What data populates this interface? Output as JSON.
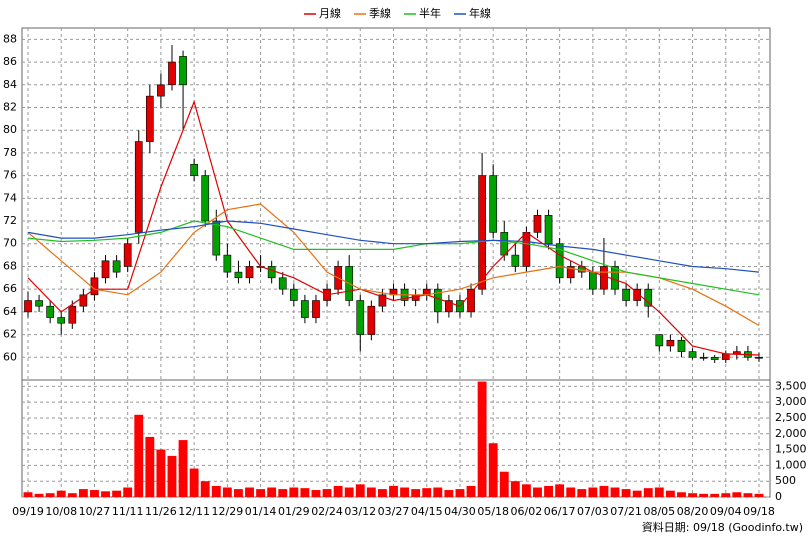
{
  "chart_data": [
    {
      "type": "candlestick",
      "categories": [
        "09/19",
        null,
        null,
        "10/08",
        null,
        null,
        "10/27",
        null,
        null,
        "11/11",
        null,
        null,
        "11/26",
        null,
        null,
        "12/11",
        null,
        null,
        "12/29",
        null,
        null,
        "01/14",
        null,
        null,
        "01/29",
        null,
        null,
        "02/24",
        null,
        null,
        "03/12",
        null,
        null,
        "03/27",
        null,
        null,
        "04/15",
        null,
        null,
        "04/30",
        null,
        null,
        "05/18",
        null,
        null,
        "06/02",
        null,
        null,
        "06/17",
        null,
        null,
        "07/03",
        null,
        null,
        "07/21",
        null,
        null,
        "08/05",
        null,
        null,
        "08/20",
        null,
        null,
        "09/04",
        null,
        null,
        "09/18"
      ],
      "open": [
        64,
        65,
        64.5,
        63.5,
        63,
        64.5,
        65.5,
        67,
        68.5,
        68,
        71,
        79,
        83,
        84,
        86.5,
        77,
        76,
        72,
        69,
        67.5,
        67,
        68,
        68,
        67,
        66,
        65,
        63.5,
        65,
        66,
        68,
        65,
        62,
        64.5,
        65.5,
        66,
        65,
        65.5,
        66,
        64,
        65,
        64,
        66,
        76,
        71,
        69,
        68,
        71,
        72.5,
        70,
        67,
        68,
        67.5,
        66,
        68,
        66,
        65,
        66,
        62,
        61,
        61.5,
        60.5,
        60,
        60,
        59.8,
        60.3,
        60.5,
        60
      ],
      "high": [
        65.8,
        65.5,
        65,
        64,
        65,
        66,
        67.5,
        69,
        69,
        70.5,
        80,
        84,
        85,
        87.5,
        87,
        77.5,
        76.5,
        73,
        70,
        68.5,
        68.5,
        69,
        68.5,
        67.5,
        66.5,
        65.5,
        65.5,
        66.5,
        68.5,
        69,
        65.5,
        65,
        66,
        66.5,
        66.5,
        66,
        66.5,
        66.5,
        65.5,
        65.5,
        66.5,
        78,
        77,
        72,
        70,
        71.5,
        73,
        73,
        70.5,
        68.5,
        68.5,
        68,
        70.5,
        68.5,
        66.5,
        66.5,
        66.5,
        62,
        62,
        61.8,
        60.8,
        60.4,
        60.2,
        60.6,
        61,
        61,
        60.4
      ],
      "low": [
        63.5,
        64,
        63,
        62,
        62.5,
        64,
        65,
        66.5,
        67,
        67.5,
        70,
        78,
        82,
        83.5,
        80,
        75.5,
        71.5,
        68.5,
        67,
        66.5,
        66.5,
        67.5,
        66.5,
        65.5,
        64.5,
        63,
        63,
        64.5,
        65.5,
        64.5,
        60.5,
        61.5,
        64,
        65,
        64.5,
        64.5,
        65,
        63,
        63.5,
        63.5,
        63.5,
        65.5,
        70.5,
        68.5,
        67.5,
        67.5,
        70.5,
        69.5,
        66.5,
        66.5,
        67,
        65.5,
        65.5,
        65.5,
        64.5,
        64.5,
        63.5,
        60.5,
        60.5,
        60,
        59.8,
        59.7,
        59.5,
        59.5,
        59.8,
        59.7,
        59.6
      ],
      "close": [
        65,
        64.5,
        63.5,
        63,
        64.5,
        65.5,
        67,
        68.5,
        67.5,
        70,
        79,
        83,
        84,
        86,
        84,
        76,
        72,
        69,
        67.5,
        67,
        68,
        68,
        67,
        66,
        65,
        63.5,
        65,
        66,
        68,
        65,
        62,
        64.5,
        65.5,
        66,
        65,
        65.5,
        66,
        64,
        65,
        64,
        66,
        76,
        71,
        69,
        68,
        71,
        72.5,
        70,
        67,
        68,
        67.5,
        66,
        68,
        66,
        65,
        66,
        64.5,
        61,
        61.5,
        60.5,
        60,
        60,
        59.8,
        60.3,
        60.5,
        60,
        60
      ],
      "up_color": "#e00000",
      "down_color": "#00a000",
      "series": [
        {
          "name": "月線",
          "color": "#e00000",
          "x": [
            0,
            3,
            6,
            9,
            12,
            15,
            18,
            21,
            24,
            27,
            30,
            33,
            36,
            39,
            42,
            45,
            48,
            51,
            54,
            57,
            60,
            63,
            66
          ],
          "values": [
            67,
            64,
            66,
            66,
            75,
            82.5,
            72,
            68,
            67,
            65.5,
            66,
            65,
            65.5,
            64.5,
            68,
            71,
            69,
            67.5,
            66.5,
            64,
            61,
            60.3,
            60.2
          ]
        },
        {
          "name": "季線",
          "color": "#e87010",
          "x": [
            0,
            3,
            6,
            9,
            12,
            15,
            18,
            21,
            24,
            27,
            30,
            33,
            36,
            39,
            42,
            45,
            48,
            51,
            54,
            57,
            60,
            63,
            66
          ],
          "values": [
            71,
            68.5,
            66,
            65.5,
            67.5,
            71,
            73,
            73.5,
            71,
            67.5,
            66,
            65.5,
            65.5,
            66,
            67,
            67.5,
            68,
            67.5,
            67.5,
            67,
            66,
            64.5,
            62.8
          ]
        },
        {
          "name": "半年",
          "color": "#20c020",
          "x": [
            0,
            3,
            6,
            9,
            12,
            15,
            18,
            21,
            24,
            27,
            30,
            33,
            36,
            39,
            42,
            45,
            48,
            51,
            54,
            57,
            60,
            63,
            66
          ],
          "values": [
            70.5,
            70.2,
            70.3,
            70.5,
            71,
            72,
            71.5,
            70.5,
            69.5,
            69.5,
            69.5,
            69.5,
            70,
            70,
            70.3,
            70,
            69.5,
            68.5,
            67.5,
            67,
            66.5,
            66,
            65.5
          ]
        },
        {
          "name": "年線",
          "color": "#2050c0",
          "x": [
            0,
            3,
            6,
            9,
            12,
            15,
            18,
            21,
            24,
            27,
            30,
            33,
            36,
            39,
            42,
            45,
            48,
            51,
            54,
            57,
            60,
            63,
            66
          ],
          "values": [
            71,
            70.5,
            70.5,
            70.8,
            71.2,
            71.5,
            72,
            71.8,
            71.3,
            70.8,
            70.3,
            70,
            70,
            70.2,
            70.3,
            70.2,
            69.8,
            69.5,
            69,
            68.5,
            68,
            67.8,
            67.5
          ]
        }
      ],
      "ylim": [
        58,
        89
      ],
      "yticks": [
        60,
        62,
        64,
        66,
        68,
        70,
        72,
        74,
        76,
        78,
        80,
        82,
        84,
        86,
        88
      ],
      "grid": true,
      "legend": "top"
    },
    {
      "type": "bar",
      "values": [
        150,
        100,
        120,
        200,
        120,
        250,
        220,
        180,
        200,
        300,
        2600,
        1900,
        1500,
        1300,
        1800,
        900,
        500,
        350,
        300,
        250,
        300,
        250,
        300,
        250,
        300,
        280,
        220,
        250,
        350,
        300,
        400,
        300,
        250,
        350,
        300,
        250,
        280,
        300,
        220,
        250,
        350,
        3650,
        1700,
        800,
        500,
        400,
        300,
        350,
        400,
        300,
        250,
        300,
        350,
        300,
        250,
        200,
        280,
        300,
        200,
        150,
        120,
        100,
        100,
        120,
        150,
        120,
        100
      ],
      "color": "#ff0000",
      "ylim": [
        0,
        3700
      ],
      "yticks": [
        0,
        500,
        {
          "value": 1000,
          "label": "1,000"
        },
        {
          "value": 1500,
          "label": "1,500"
        },
        {
          "value": 2000,
          "label": "2,000"
        },
        {
          "value": 2500,
          "label": "2,500"
        },
        {
          "value": 3000,
          "label": "3,000"
        },
        {
          "value": 3500,
          "label": "3,500"
        }
      ],
      "grid": true,
      "annotation": "資料日期: 09/18  (Goodinfo.tw)"
    }
  ]
}
